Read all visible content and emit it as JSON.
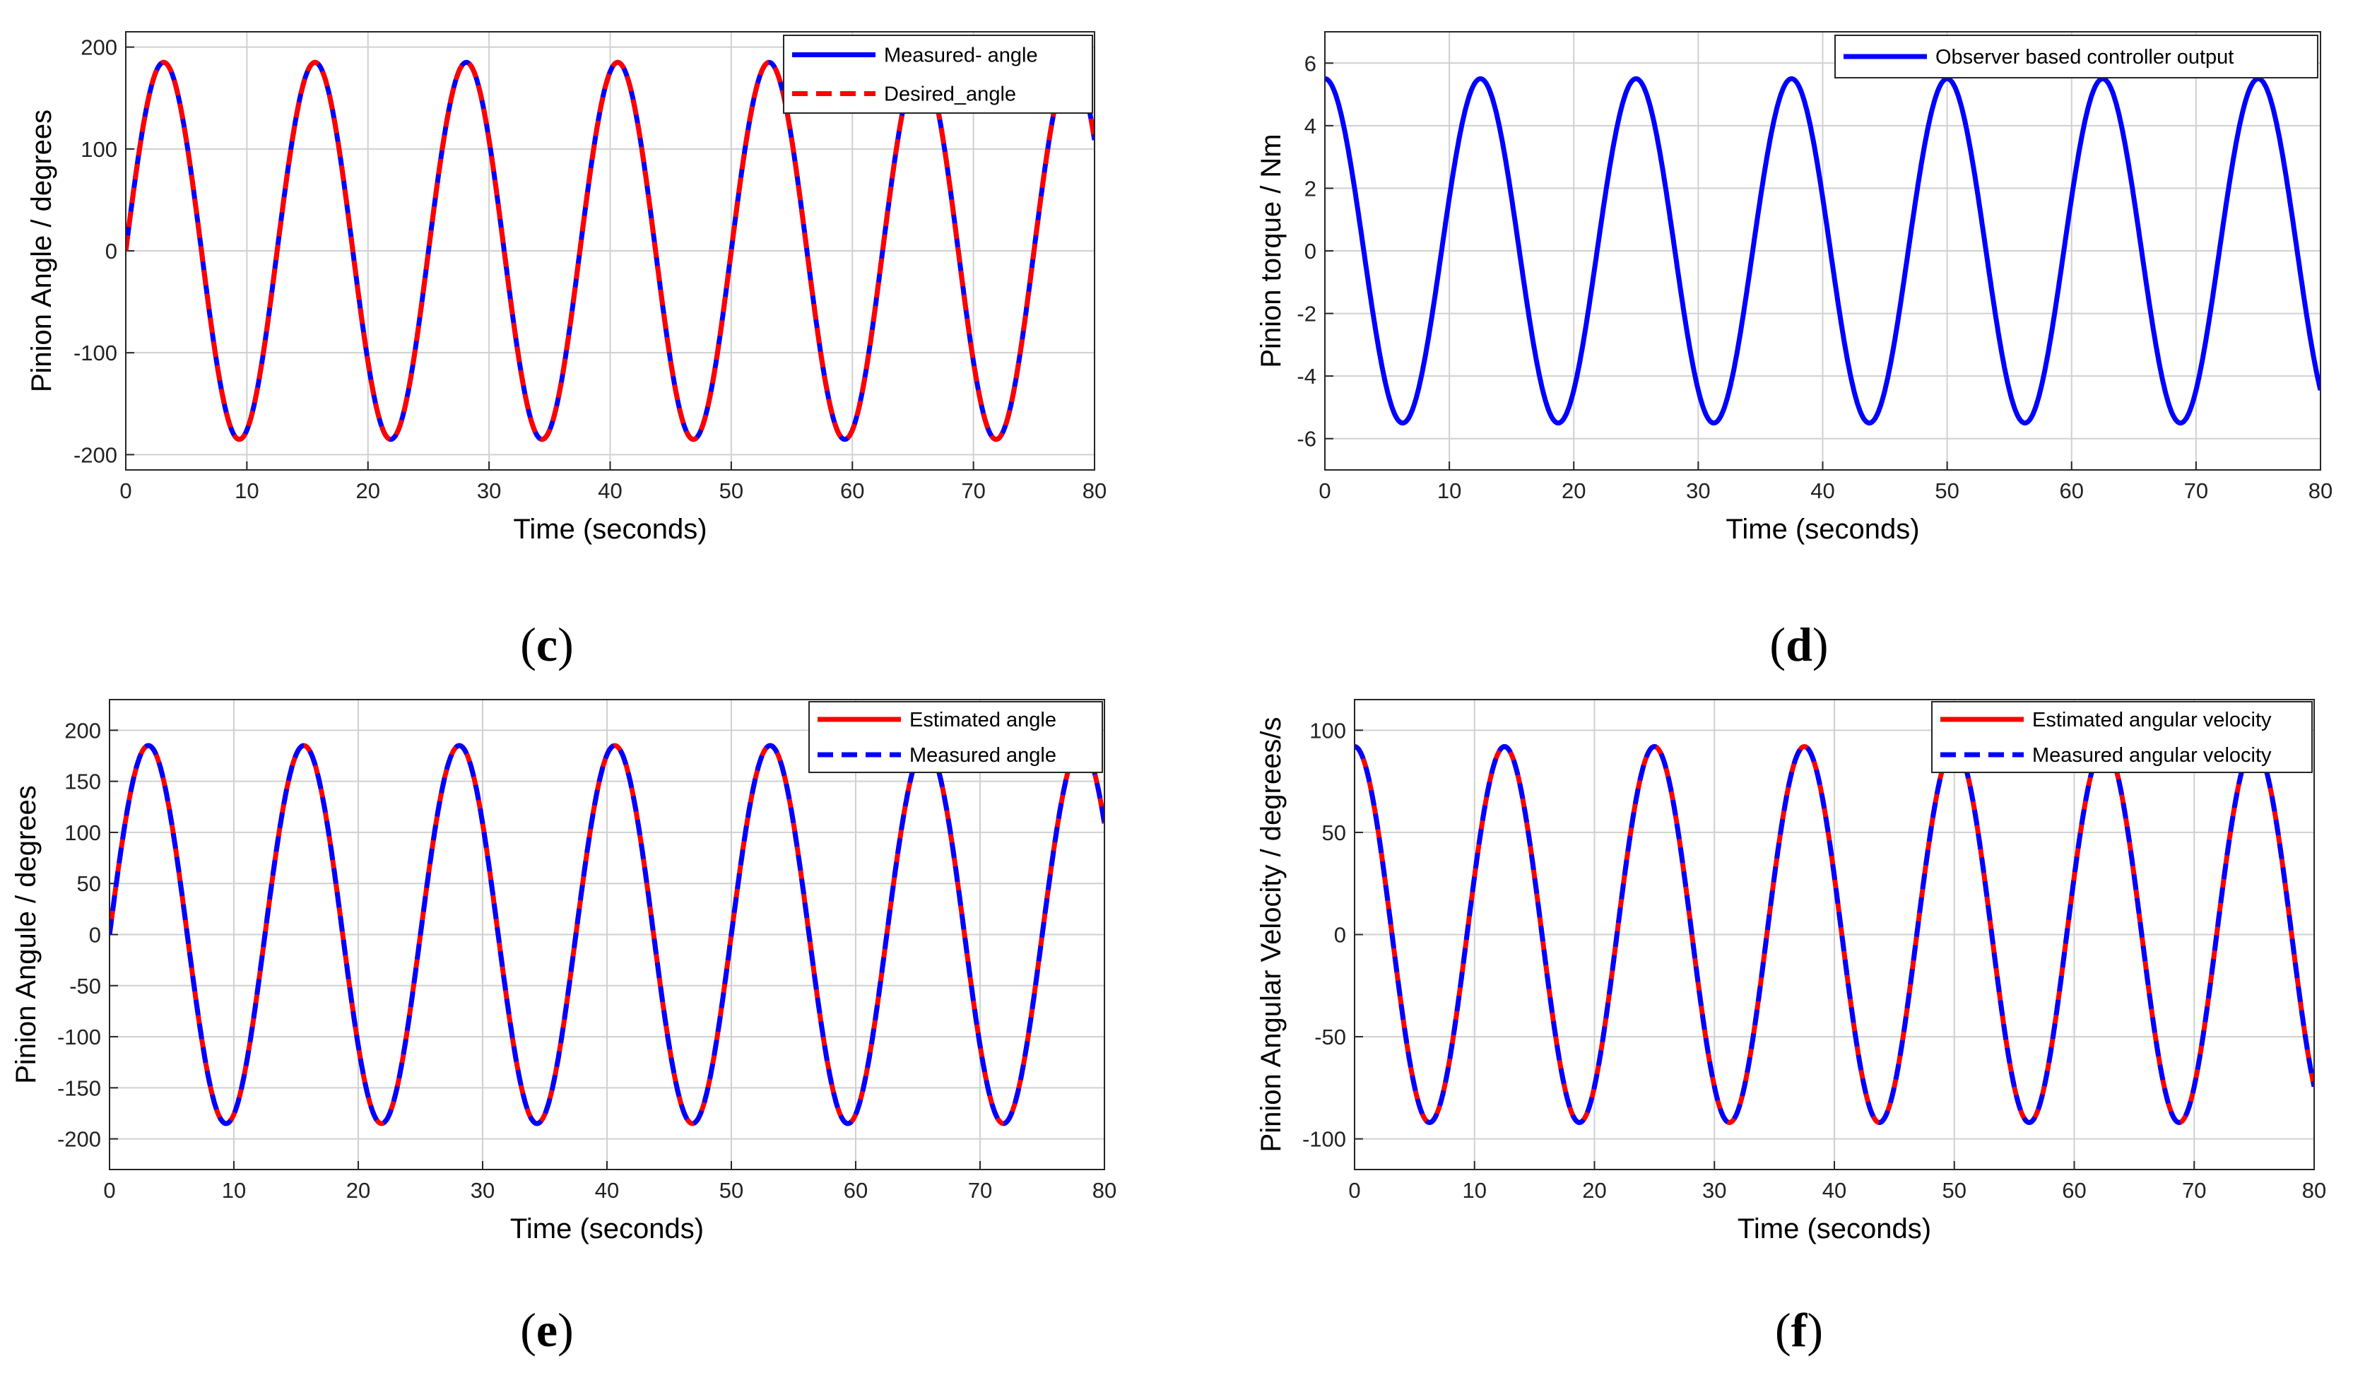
{
  "chart_data": [
    {
      "type": "line",
      "panel_label": "c",
      "xlabel": "Time (seconds)",
      "ylabel": "Pinion Angle / degrees",
      "xlim": [
        0,
        80
      ],
      "ylim": [
        -215,
        215
      ],
      "xticks": [
        0,
        10,
        20,
        30,
        40,
        50,
        60,
        70,
        80
      ],
      "yticks": [
        -200,
        -100,
        0,
        100,
        200
      ],
      "grid": true,
      "legend_position": "top-right",
      "series": [
        {
          "name": "Measured- angle",
          "function": "sine",
          "amplitude": 185,
          "period": 12.5,
          "phase": 0,
          "color": "#0000ff",
          "style": "solid"
        },
        {
          "name": "Desired_angle",
          "function": "sine",
          "amplitude": 185,
          "period": 12.5,
          "phase": 0,
          "color": "#ff0000",
          "style": "dashed"
        }
      ]
    },
    {
      "type": "line",
      "panel_label": "d",
      "xlabel": "Time (seconds)",
      "ylabel": "Pinion torque / Nm",
      "xlim": [
        0,
        80
      ],
      "ylim": [
        -7,
        7
      ],
      "xticks": [
        0,
        10,
        20,
        30,
        40,
        50,
        60,
        70,
        80
      ],
      "yticks": [
        -6,
        -4,
        -2,
        0,
        2,
        4,
        6
      ],
      "grid": true,
      "legend_position": "top-right",
      "series": [
        {
          "name": "Observer based controller output",
          "function": "cosine",
          "amplitude": 5.5,
          "period": 12.5,
          "phase": 0,
          "color": "#0000ff",
          "style": "solid-stepped"
        }
      ]
    },
    {
      "type": "line",
      "panel_label": "e",
      "xlabel": "Time (seconds)",
      "ylabel": "Pinion Angule / degrees",
      "xlim": [
        0,
        80
      ],
      "ylim": [
        -230,
        230
      ],
      "xticks": [
        0,
        10,
        20,
        30,
        40,
        50,
        60,
        70,
        80
      ],
      "yticks": [
        -200,
        -150,
        -100,
        -50,
        0,
        50,
        100,
        150,
        200
      ],
      "grid": true,
      "legend_position": "top-right",
      "series": [
        {
          "name": "Estimated angle",
          "function": "sine",
          "amplitude": 185,
          "period": 12.5,
          "phase": 0,
          "color": "#ff0000",
          "style": "solid"
        },
        {
          "name": "Measured angle",
          "function": "sine",
          "amplitude": 185,
          "period": 12.5,
          "phase": 0,
          "color": "#0000ff",
          "style": "dashed"
        }
      ]
    },
    {
      "type": "line",
      "panel_label": "f",
      "xlabel": "Time (seconds)",
      "ylabel": "Pinion Angular Velocity /  degrees/s",
      "xlim": [
        0,
        80
      ],
      "ylim": [
        -115,
        115
      ],
      "xticks": [
        0,
        10,
        20,
        30,
        40,
        50,
        60,
        70,
        80
      ],
      "yticks": [
        -100,
        -50,
        0,
        50,
        100
      ],
      "grid": true,
      "legend_position": "top-right",
      "series": [
        {
          "name": "Estimated angular velocity",
          "function": "cosine",
          "amplitude": 92,
          "period": 12.5,
          "phase": 0,
          "color": "#ff0000",
          "style": "solid"
        },
        {
          "name": "Measured angular velocity",
          "function": "cosine",
          "amplitude": 92,
          "period": 12.5,
          "phase": 0,
          "color": "#0000ff",
          "style": "dashed-stepped"
        }
      ]
    }
  ]
}
